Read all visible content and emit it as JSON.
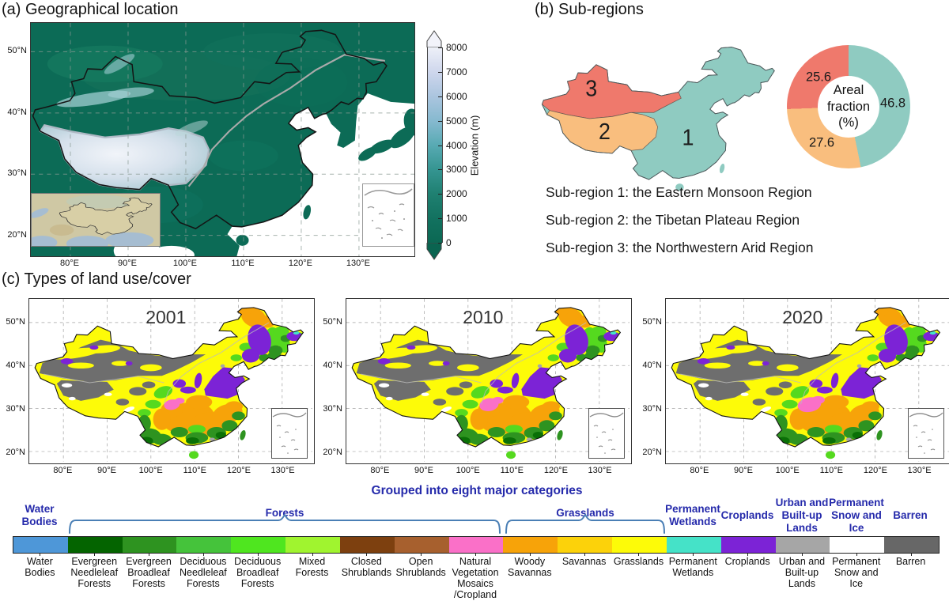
{
  "panel_a": {
    "title": "(a) Geographical location",
    "x_tick_labels": [
      "80°E",
      "90°E",
      "100°E",
      "110°E",
      "120°E",
      "130°E"
    ],
    "y_tick_labels": [
      "50°N",
      "40°N",
      "30°N",
      "20°N"
    ],
    "colorbar": {
      "label": "Elevation (m)",
      "tick_labels": [
        "0",
        "1000",
        "2000",
        "3000",
        "4000",
        "5000",
        "6000",
        "7000",
        "8000"
      ],
      "min": 0,
      "max": 8000
    },
    "insets": [
      "regional-context-map",
      "south-china-sea-inset"
    ]
  },
  "panel_b": {
    "title": "(b) Sub-regions",
    "region_numbers": [
      "1",
      "2",
      "3"
    ],
    "region_colors": [
      "#8fcbc1",
      "#f9be7e",
      "#ef796c"
    ],
    "descriptions": [
      "Sub-region 1: the Eastern Monsoon Region",
      "Sub-region 2: the Tibetan Plateau Region",
      "Sub-region 3: the Northwestern Arid Region"
    ],
    "donut_center_label": "Areal\nfraction\n(%)",
    "fraction_labels": [
      "46.8",
      "27.6",
      "25.6"
    ]
  },
  "panel_c": {
    "title": "(c) Types of land use/cover",
    "years": [
      "2001",
      "2010",
      "2020"
    ],
    "x_tick_labels": [
      "80°E",
      "90°E",
      "100°E",
      "110°E",
      "120°E",
      "130°E"
    ],
    "y_tick_labels": [
      "50°N",
      "40°N",
      "30°N",
      "20°N"
    ]
  },
  "legend": {
    "title": "Grouped into eight major categories",
    "title_color": "#252aab",
    "group_label_color": "#252aab",
    "brace_color": "#4a7fb5",
    "groups": [
      {
        "label": "Water\nBodies"
      },
      {
        "label": "Forests"
      },
      {
        "label": "Grasslands"
      },
      {
        "label": "Permanent\nWetlands"
      },
      {
        "label": "Croplands"
      },
      {
        "label": "Urban and\nBuilt-up\nLands"
      },
      {
        "label": "Permanent\nSnow and\nIce"
      },
      {
        "label": "Barren"
      }
    ],
    "items": [
      {
        "label": "Water\nBodies",
        "color": "#4e97d8"
      },
      {
        "label": "Evergreen\nNeedleleaf\nForests",
        "color": "#046400"
      },
      {
        "label": "Evergreen\nBroadleaf\nForests",
        "color": "#2e9320"
      },
      {
        "label": "Deciduous\nNeedleleaf\nForests",
        "color": "#45c33b"
      },
      {
        "label": "Deciduous\nBroadleaf\nForests",
        "color": "#4fe61f"
      },
      {
        "label": "Mixed\nForests",
        "color": "#a0f42f"
      },
      {
        "label": "Closed\nShrublands",
        "color": "#7d400f"
      },
      {
        "label": "Open\nShrublands",
        "color": "#a7602e"
      },
      {
        "label": "Natural\nVegetation\nMosaics\n/Cropland",
        "color": "#fa70c8"
      },
      {
        "label": "Woody\nSavannas",
        "color": "#f7a309"
      },
      {
        "label": "Savannas",
        "color": "#fcd20a"
      },
      {
        "label": "Grasslands",
        "color": "#fdfb08"
      },
      {
        "label": "Permanent\nWetlands",
        "color": "#45e2c8"
      },
      {
        "label": "Croplands",
        "color": "#7c23d6"
      },
      {
        "label": "Urban and\nBuilt-up\nLands",
        "color": "#a6a6a6"
      },
      {
        "label": "Permanent\nSnow and\nIce",
        "color": "#ffffff"
      },
      {
        "label": "Barren",
        "color": "#676767"
      }
    ]
  },
  "chart_data": {
    "type": "pie",
    "style": "donut",
    "title": "Areal fraction (%)",
    "labels": [
      "Sub-region 1: the Eastern Monsoon Region",
      "Sub-region 2: the Tibetan Plateau Region",
      "Sub-region 3: the Northwestern Arid Region"
    ],
    "values": [
      46.8,
      27.6,
      25.6
    ],
    "colors": [
      "#8fcbc1",
      "#f9be7e",
      "#ef796c"
    ],
    "legend_position": "none"
  }
}
